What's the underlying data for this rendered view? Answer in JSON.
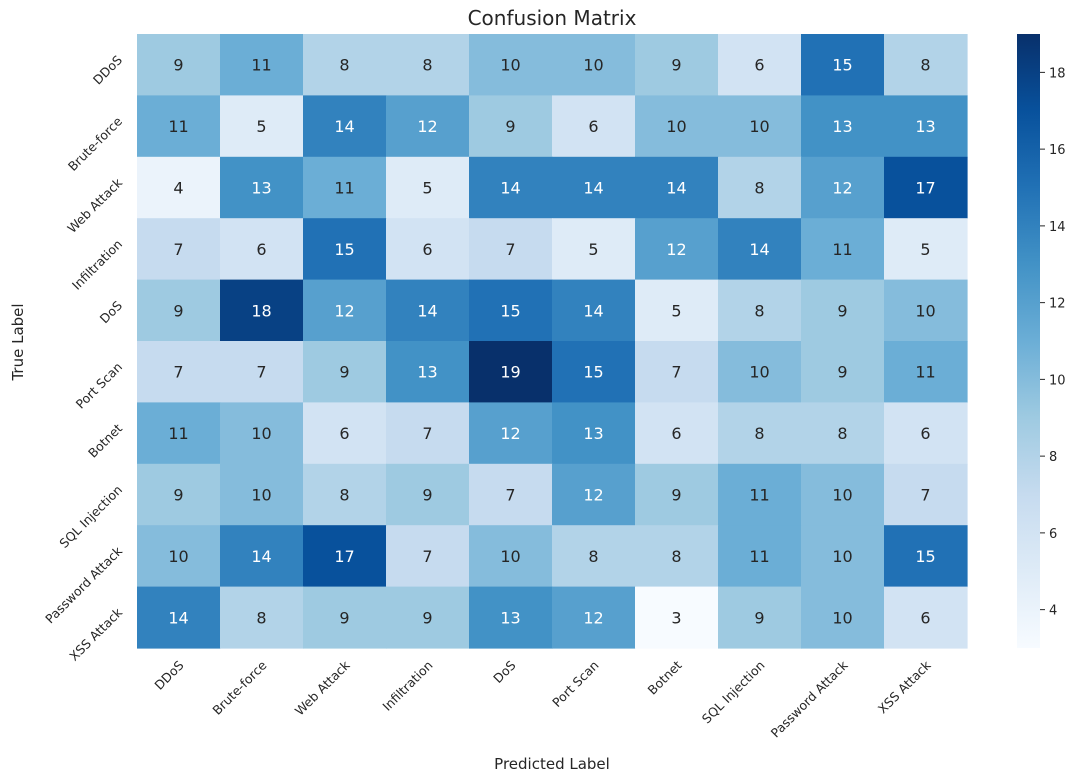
{
  "chart_data": {
    "type": "heatmap",
    "title": "Confusion Matrix",
    "xlabel": "Predicted Label",
    "ylabel": "True Label",
    "x_categories": [
      "DDoS",
      "Brute-force",
      "Web Attack",
      "Infiltration",
      "DoS",
      "Port Scan",
      "Botnet",
      "SQL Injection",
      "Password Attack",
      "XSS Attack"
    ],
    "y_categories": [
      "DDoS",
      "Brute-force",
      "Web Attack",
      "Infiltration",
      "DoS",
      "Port Scan",
      "Botnet",
      "SQL Injection",
      "Password Attack",
      "XSS Attack"
    ],
    "values": [
      [
        9,
        11,
        8,
        8,
        10,
        10,
        9,
        6,
        15,
        8
      ],
      [
        11,
        5,
        14,
        12,
        9,
        6,
        10,
        10,
        13,
        13
      ],
      [
        4,
        13,
        11,
        5,
        14,
        14,
        14,
        8,
        12,
        17
      ],
      [
        7,
        6,
        15,
        6,
        7,
        5,
        12,
        14,
        11,
        5
      ],
      [
        9,
        18,
        12,
        14,
        15,
        14,
        5,
        8,
        9,
        10
      ],
      [
        7,
        7,
        9,
        13,
        19,
        15,
        7,
        10,
        9,
        11
      ],
      [
        11,
        10,
        6,
        7,
        12,
        13,
        6,
        8,
        8,
        6
      ],
      [
        9,
        10,
        8,
        9,
        7,
        12,
        9,
        11,
        10,
        7
      ],
      [
        10,
        14,
        17,
        7,
        10,
        8,
        8,
        11,
        10,
        15
      ],
      [
        14,
        8,
        9,
        9,
        13,
        12,
        3,
        9,
        10,
        6
      ]
    ],
    "colormap": "Blues",
    "vmin": 3,
    "vmax": 19,
    "colorbar_ticks": [
      4,
      6,
      8,
      10,
      12,
      14,
      16,
      18
    ],
    "annotations": true,
    "colors": {
      "low": "#f7fbff",
      "high": "#08306b",
      "text_dark": "#262626",
      "text_light": "#ffffff"
    }
  }
}
